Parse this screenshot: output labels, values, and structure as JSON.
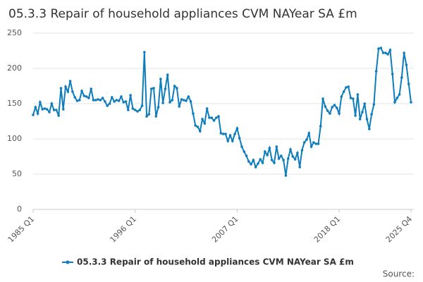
{
  "chart_data": {
    "type": "line",
    "title": "05.3.3 Repair of household appliances CVM NAYear SA £m",
    "categories": [
      "1985 Q1",
      null,
      null,
      null,
      null,
      null,
      null,
      null,
      null,
      null,
      null,
      null,
      null,
      null,
      null,
      null,
      null,
      null,
      null,
      null,
      null,
      null,
      null,
      null,
      null,
      null,
      null,
      null,
      null,
      null,
      null,
      null,
      null,
      null,
      null,
      null,
      null,
      null,
      null,
      null,
      null,
      null,
      null,
      null,
      "1996 Q1",
      null,
      null,
      null,
      null,
      null,
      null,
      null,
      null,
      null,
      null,
      null,
      null,
      null,
      null,
      null,
      null,
      null,
      null,
      null,
      null,
      null,
      null,
      null,
      null,
      null,
      null,
      null,
      null,
      null,
      null,
      null,
      null,
      null,
      null,
      null,
      null,
      null,
      null,
      null,
      null,
      null,
      null,
      null,
      "2007 Q1",
      null,
      null,
      null,
      null,
      null,
      null,
      null,
      null,
      null,
      null,
      null,
      null,
      null,
      null,
      null,
      null,
      null,
      null,
      null,
      null,
      null,
      null,
      null,
      null,
      null,
      null,
      null,
      null,
      null,
      null,
      null,
      null,
      null,
      null,
      null,
      null,
      null,
      null,
      null,
      null,
      null,
      null,
      null,
      "2018 Q1",
      null,
      null,
      null,
      null,
      null,
      null,
      null,
      null,
      null,
      null,
      null,
      null,
      null,
      null,
      null,
      null,
      null,
      null,
      null,
      null,
      null,
      null,
      null,
      null,
      null,
      null,
      null,
      null,
      null,
      null,
      "2025 Q4"
    ],
    "series": [
      {
        "name": "05.3.3 Repair of household appliances CVM NAYear SA £m",
        "color": "#0f7dbc",
        "values": [
          134,
          145,
          136,
          152,
          142,
          143,
          142,
          138,
          150,
          141,
          141,
          133,
          172,
          142,
          174,
          167,
          182,
          167,
          159,
          154,
          155,
          168,
          161,
          160,
          158,
          171,
          155,
          155,
          156,
          155,
          158,
          153,
          147,
          150,
          159,
          153,
          155,
          154,
          160,
          152,
          153,
          141,
          162,
          143,
          141,
          139,
          141,
          147,
          223,
          132,
          135,
          171,
          172,
          132,
          145,
          185,
          151,
          171,
          191,
          152,
          155,
          175,
          172,
          146,
          156,
          155,
          154,
          160,
          153,
          136,
          119,
          117,
          111,
          128,
          122,
          143,
          130,
          130,
          126,
          130,
          132,
          108,
          107,
          107,
          97,
          105,
          97,
          107,
          115,
          101,
          89,
          82,
          76,
          68,
          64,
          70,
          60,
          65,
          71,
          66,
          82,
          77,
          87,
          70,
          66,
          89,
          72,
          76,
          70,
          48,
          72,
          85,
          75,
          71,
          80,
          60,
          84,
          95,
          99,
          108,
          89,
          95,
          93,
          93,
          118,
          157,
          146,
          140,
          136,
          145,
          148,
          144,
          136,
          160,
          167,
          173,
          174,
          158,
          157,
          133,
          163,
          128,
          138,
          150,
          128,
          114,
          135,
          149,
          196,
          228,
          229,
          222,
          222,
          220,
          226,
          192,
          152,
          158,
          163,
          187,
          222,
          205,
          178,
          152
        ]
      }
    ],
    "ylim": [
      0,
      250
    ],
    "yticks": [
      0,
      50,
      100,
      150,
      200,
      250
    ],
    "grid": true,
    "legend": "bottom",
    "source": "Source:"
  }
}
